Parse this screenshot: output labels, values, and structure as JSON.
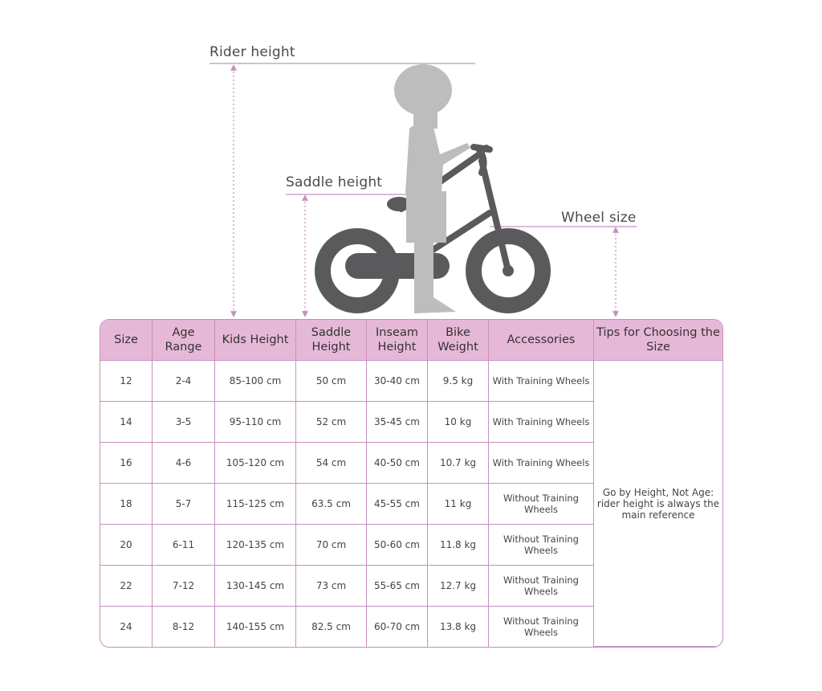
{
  "labels": {
    "rider_height": "Rider height",
    "saddle_height": "Saddle height",
    "wheel_size": "Wheel size"
  },
  "colors": {
    "header_bg": "#e6b8d8",
    "border": "#c98fbf",
    "bike": "#5a5a5c",
    "rider": "#bdbdbd"
  },
  "table": {
    "headers": [
      "Size",
      "Age Range",
      "Kids Height",
      "Saddle Height",
      "Inseam Height",
      "Bike Weight",
      "Accessories",
      "Tips for Choosing the Size"
    ],
    "rows": [
      [
        "12",
        "2-4",
        "85-100 cm",
        "50 cm",
        "30-40 cm",
        "9.5 kg",
        "With Training Wheels"
      ],
      [
        "14",
        "3-5",
        "95-110 cm",
        "52 cm",
        "35-45 cm",
        "10 kg",
        "With Training Wheels"
      ],
      [
        "16",
        "4-6",
        "105-120 cm",
        "54 cm",
        "40-50 cm",
        "10.7 kg",
        "With Training Wheels"
      ],
      [
        "18",
        "5-7",
        "115-125 cm",
        "63.5 cm",
        "45-55 cm",
        "11 kg",
        "Without Training Wheels"
      ],
      [
        "20",
        "6-11",
        "120-135 cm",
        "70 cm",
        "50-60 cm",
        "11.8 kg",
        "Without Training Wheels"
      ],
      [
        "22",
        "7-12",
        "130-145 cm",
        "73 cm",
        "55-65 cm",
        "12.7 kg",
        "Without Training Wheels"
      ],
      [
        "24",
        "8-12",
        "140-155 cm",
        "82.5 cm",
        "60-70 cm",
        "13.8 kg",
        "Without Training Wheels"
      ]
    ],
    "tip": "Go by Height, Not Age: rider height is always the main reference"
  }
}
